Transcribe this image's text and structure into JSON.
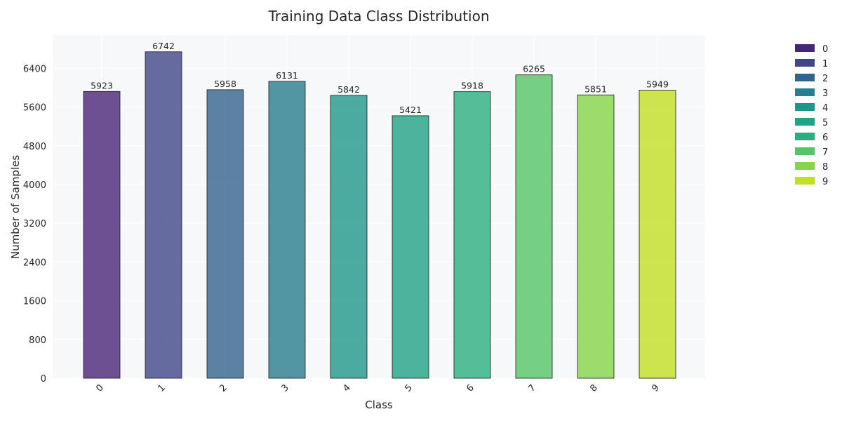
{
  "chart_data": {
    "type": "bar",
    "title": "Training Data Class Distribution",
    "xlabel": "Class",
    "ylabel": "Number of Samples",
    "categories": [
      "0",
      "1",
      "2",
      "3",
      "4",
      "5",
      "6",
      "7",
      "8",
      "9"
    ],
    "values": [
      5923,
      6742,
      5958,
      6131,
      5842,
      5421,
      5918,
      6265,
      5851,
      5949
    ],
    "ylim": [
      0,
      7079
    ],
    "yticks": [
      0,
      800,
      1600,
      2400,
      3200,
      4000,
      4800,
      5600,
      6400
    ],
    "grid": true,
    "legend": {
      "placement": "upper-right, outside plot",
      "entries": [
        "0",
        "1",
        "2",
        "3",
        "4",
        "5",
        "6",
        "7",
        "8",
        "9"
      ]
    },
    "colors": [
      "#482677",
      "#404688",
      "#33638d",
      "#287d8e",
      "#1f968b",
      "#20a386",
      "#29af7f",
      "#55c667",
      "#85d54a",
      "#c2df23"
    ],
    "plot_background": "#f7f8fa",
    "bar_edge_color": "#1a1a1a"
  }
}
